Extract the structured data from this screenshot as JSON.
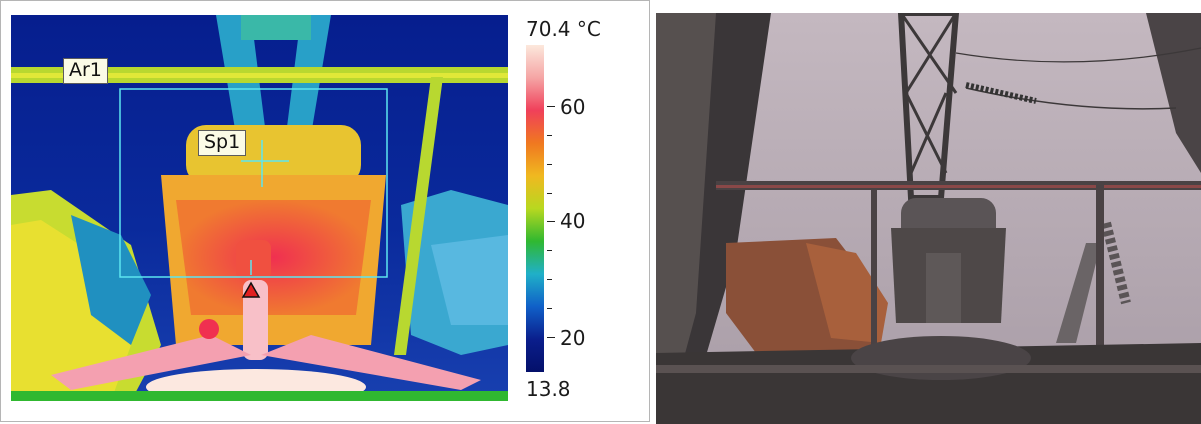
{
  "thermal": {
    "scale_max": "70.4 °C",
    "scale_min": "13.8",
    "scale_ticks": [
      "60",
      "40",
      "20"
    ],
    "area_label": "Ar1",
    "spot_label": "Sp1",
    "palette": [
      "#fce8dc",
      "#f5a5a5",
      "#f0405a",
      "#f07820",
      "#f0b820",
      "#b8d820",
      "#30b830",
      "#20b0c8",
      "#1060c8",
      "#0a1e8c",
      "#04106a"
    ]
  },
  "photo": {
    "sky": "#b6aab4",
    "structure": "#3e3a3c"
  }
}
